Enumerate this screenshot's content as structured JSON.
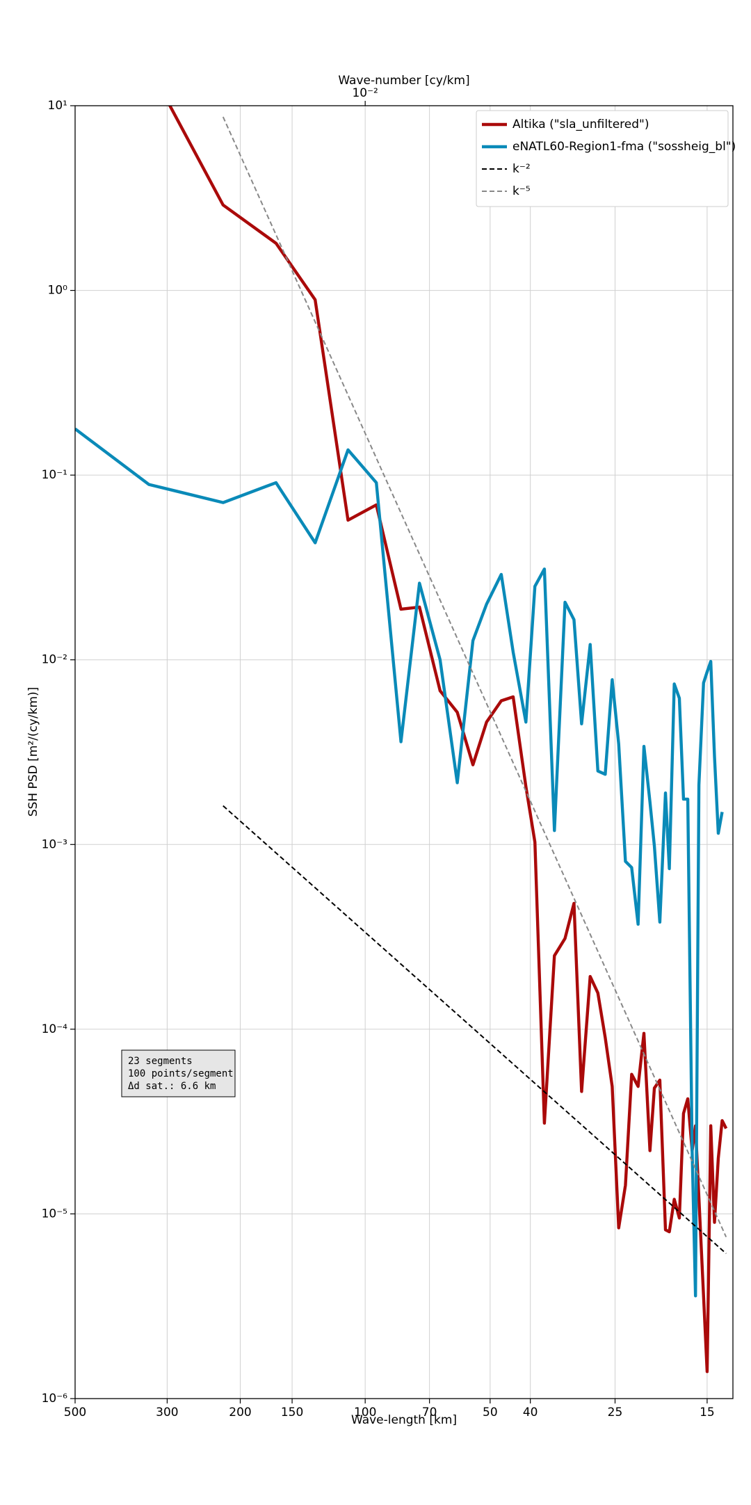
{
  "chart_data": {
    "type": "line",
    "xlabel": "Wave-length [km]",
    "ylabel": "SSH PSD [m²/(cy/km)]",
    "x2label": "Wave-number [cy/km]",
    "xscale": "log",
    "yscale": "log",
    "grid": true,
    "legend": "upper right",
    "xlim": [
      500,
      13.0
    ],
    "xticks": [
      500,
      300,
      200,
      150,
      100,
      70,
      50,
      40,
      25,
      15
    ],
    "x2ticks": [
      {
        "value": 0.01,
        "label": "10⁻²"
      }
    ],
    "ylim": [
      1e-06,
      10
    ],
    "yticks": [
      {
        "value": 1e-06,
        "label": "10⁻⁶"
      },
      {
        "value": 1e-05,
        "label": "10⁻⁵"
      },
      {
        "value": 0.0001,
        "label": "10⁻⁴"
      },
      {
        "value": 0.001,
        "label": "10⁻³"
      },
      {
        "value": 0.01,
        "label": "10⁻²"
      },
      {
        "value": 0.1,
        "label": "10⁻¹"
      },
      {
        "value": 1,
        "label": "10⁰"
      },
      {
        "value": 10,
        "label": "10¹"
      }
    ],
    "annotation": [
      "23 segments",
      "100 points/segment",
      "Δd sat.: 6.6 km"
    ],
    "series": [
      {
        "name": "Altika (\"sla_unfiltered\")",
        "color": "#aa0a0a",
        "linestyle": "solid",
        "x": [
          332,
          220,
          164,
          132,
          110,
          94,
          82,
          74,
          66,
          60,
          55,
          51,
          47,
          44,
          41,
          39,
          37,
          35,
          33,
          31.4,
          30.1,
          28.7,
          27.5,
          26.4,
          25.4,
          24.5,
          23.6,
          22.8,
          22.0,
          21.3,
          20.6,
          20.1,
          19.5,
          18.9,
          18.5,
          18.0,
          17.5,
          17.1,
          16.7,
          16.3,
          16.0,
          15.0,
          14.7,
          14.4,
          14.1,
          13.8,
          13.5
        ],
        "values": [
          16.3,
          2.9,
          1.8,
          0.89,
          0.057,
          0.069,
          0.0188,
          0.0193,
          0.0068,
          0.0052,
          0.0027,
          0.0046,
          0.006,
          0.0063,
          0.00206,
          0.00103,
          3.1e-05,
          0.00025,
          0.00031,
          0.00048,
          4.6e-05,
          0.000193,
          0.000157,
          9e-05,
          4.9e-05,
          8.4e-06,
          1.43e-05,
          5.7e-05,
          4.9e-05,
          9.5e-05,
          2.2e-05,
          4.8e-05,
          5.3e-05,
          8.2e-06,
          8e-06,
          1.2e-05,
          9.5e-06,
          3.5e-05,
          4.2e-05,
          2.2e-05,
          3e-05,
          1.4e-06,
          3e-05,
          9e-06,
          2e-05,
          3.2e-05,
          2.9e-05
        ]
      },
      {
        "name": "eNATL60-Region1-fma (\"sossheig_bl\")",
        "color": "#0a8ab8",
        "linestyle": "solid",
        "x": [
          500,
          332,
          220,
          164,
          132,
          110,
          94,
          82,
          74,
          66,
          60,
          55,
          51,
          47,
          44,
          41,
          39,
          37,
          35,
          33,
          31.4,
          30.1,
          28.7,
          27.5,
          26.4,
          25.4,
          24.5,
          23.6,
          22.8,
          22.0,
          21.3,
          20.6,
          20.1,
          19.5,
          18.9,
          18.5,
          18.0,
          17.5,
          17.1,
          16.7,
          16.3,
          16.0,
          15.7,
          15.3,
          15.0,
          14.7,
          14.4,
          14.1,
          13.8
        ],
        "values": [
          0.178,
          0.089,
          0.071,
          0.091,
          0.043,
          0.137,
          0.091,
          0.0036,
          0.026,
          0.01,
          0.00216,
          0.0127,
          0.02,
          0.029,
          0.011,
          0.0046,
          0.025,
          0.031,
          0.00119,
          0.0205,
          0.0165,
          0.0045,
          0.0121,
          0.0025,
          0.0024,
          0.0078,
          0.0035,
          0.00081,
          0.00075,
          0.00037,
          0.0034,
          0.0017,
          0.00098,
          0.00038,
          0.0019,
          0.00074,
          0.0074,
          0.0062,
          0.00176,
          0.00176,
          2.2e-05,
          3.6e-06,
          0.0021,
          0.0075,
          0.0086,
          0.0098,
          0.003,
          0.00115,
          0.0015
        ]
      },
      {
        "name": "k⁻²",
        "color": "#000000",
        "linestyle": "dashed",
        "x": [
          220,
          13.5
        ],
        "values": [
          0.00162,
          6.1e-06
        ]
      },
      {
        "name": "k⁻⁵",
        "color": "#888888",
        "linestyle": "dashed",
        "x": [
          220,
          13.5
        ],
        "values": [
          8.7,
          7.5e-06
        ]
      }
    ]
  }
}
